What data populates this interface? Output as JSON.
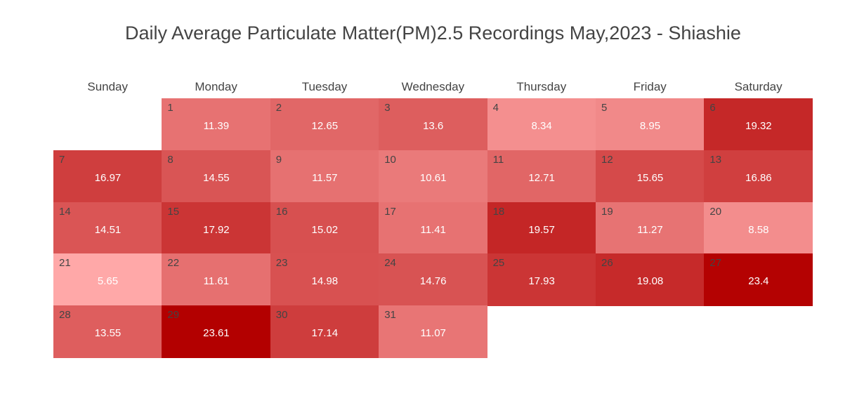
{
  "chart_data": {
    "type": "heatmap",
    "title": "Daily Average Particulate Matter(PM)2.5 Recordings May,2023 - Shiashie",
    "weekdays": [
      "Sunday",
      "Monday",
      "Tuesday",
      "Wednesday",
      "Thursday",
      "Friday",
      "Saturday"
    ],
    "first_weekday_index": 1,
    "days": [
      {
        "day": 1,
        "value": "11.39"
      },
      {
        "day": 2,
        "value": "12.65"
      },
      {
        "day": 3,
        "value": "13.6"
      },
      {
        "day": 4,
        "value": "8.34"
      },
      {
        "day": 5,
        "value": "8.95"
      },
      {
        "day": 6,
        "value": "19.32"
      },
      {
        "day": 7,
        "value": "16.97"
      },
      {
        "day": 8,
        "value": "14.55"
      },
      {
        "day": 9,
        "value": "11.57"
      },
      {
        "day": 10,
        "value": "10.61"
      },
      {
        "day": 11,
        "value": "12.71"
      },
      {
        "day": 12,
        "value": "15.65"
      },
      {
        "day": 13,
        "value": "16.86"
      },
      {
        "day": 14,
        "value": "14.51"
      },
      {
        "day": 15,
        "value": "17.92"
      },
      {
        "day": 16,
        "value": "15.02"
      },
      {
        "day": 17,
        "value": "11.41"
      },
      {
        "day": 18,
        "value": "19.57"
      },
      {
        "day": 19,
        "value": "11.27"
      },
      {
        "day": 20,
        "value": "8.58"
      },
      {
        "day": 21,
        "value": "5.65"
      },
      {
        "day": 22,
        "value": "11.61"
      },
      {
        "day": 23,
        "value": "14.98"
      },
      {
        "day": 24,
        "value": "14.76"
      },
      {
        "day": 25,
        "value": "17.93"
      },
      {
        "day": 26,
        "value": "19.08"
      },
      {
        "day": 27,
        "value": "23.4"
      },
      {
        "day": 28,
        "value": "13.55"
      },
      {
        "day": 29,
        "value": "23.61"
      },
      {
        "day": 30,
        "value": "17.14"
      },
      {
        "day": 31,
        "value": "11.07"
      }
    ],
    "color_scale": {
      "min_value": 5.65,
      "max_value": 23.61,
      "low_color": "#ffa8a8",
      "high_color": "#b30000"
    },
    "grid": false
  }
}
